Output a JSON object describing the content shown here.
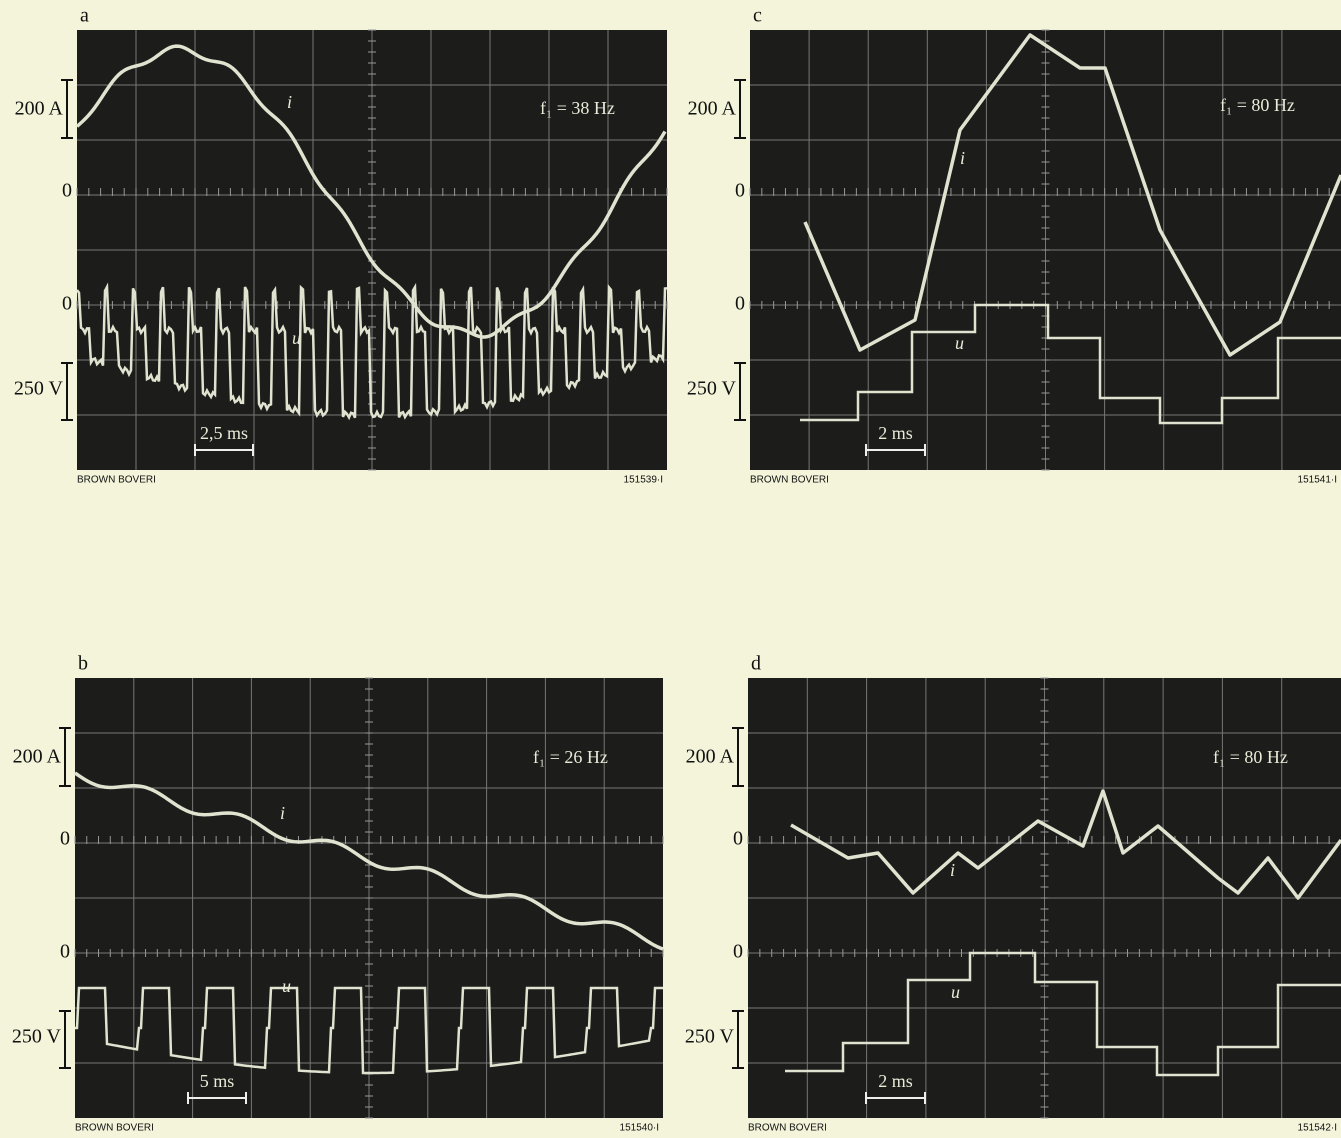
{
  "panels": [
    {
      "label": "a",
      "current_scale": "200 A",
      "current_zero": "0",
      "voltage_zero": "0",
      "voltage_scale": "250 V",
      "frequency": "f₁ = 38 Hz",
      "current_symbol": "i",
      "voltage_symbol": "u",
      "time_scale": "2,5 ms",
      "brand": "BROWN BOVERI",
      "code": "151539·I"
    },
    {
      "label": "b",
      "current_scale": "200 A",
      "current_zero": "0",
      "voltage_zero": "0",
      "voltage_scale": "250 V",
      "frequency": "f₁ = 26 Hz",
      "current_symbol": "i",
      "voltage_symbol": "u",
      "time_scale": "5 ms",
      "brand": "BROWN BOVERI",
      "code": "151540·I"
    },
    {
      "label": "c",
      "current_scale": "200 A",
      "current_zero": "0",
      "voltage_zero": "0",
      "voltage_scale": "250 V",
      "frequency": "f₁ = 80 Hz",
      "current_symbol": "i",
      "voltage_symbol": "u",
      "time_scale": "2 ms",
      "brand": "BROWN BOVERI",
      "code": "151541·I"
    },
    {
      "label": "d",
      "current_scale": "200 A",
      "current_zero": "0",
      "voltage_zero": "0",
      "voltage_scale": "250 V",
      "frequency": "f₁ = 80 Hz",
      "current_symbol": "i",
      "voltage_symbol": "u",
      "time_scale": "2 ms",
      "brand": "BROWN BOVERI",
      "code": "151542·I"
    }
  ]
}
